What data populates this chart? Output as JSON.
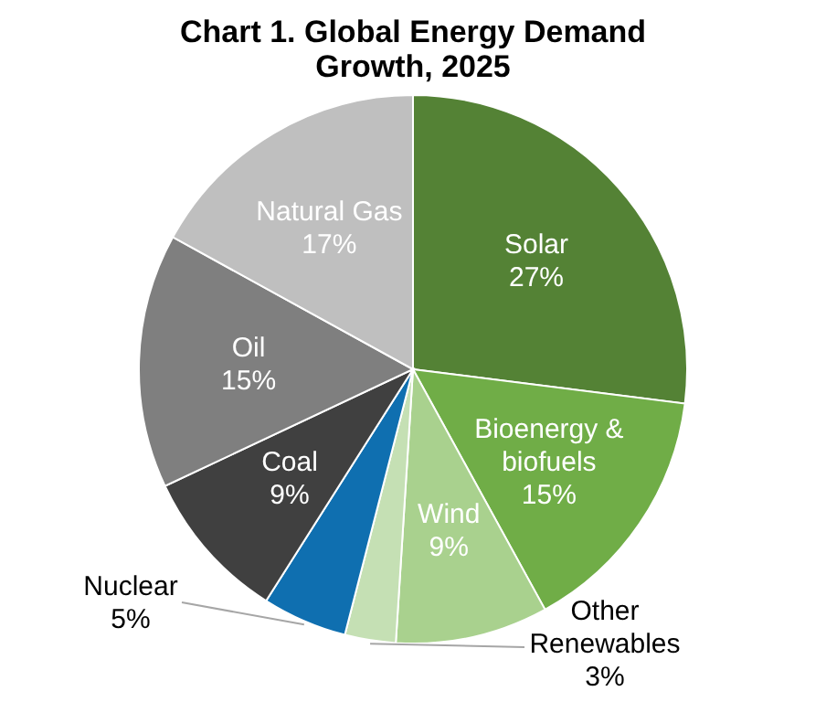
{
  "chart_data": {
    "type": "pie",
    "title": "Chart 1. Global Energy Demand Growth, 2025",
    "categories": [
      "Solar",
      "Bioenergy & biofuels",
      "Wind",
      "Other Renewables",
      "Nuclear",
      "Coal",
      "Oil",
      "Natural Gas"
    ],
    "values": [
      27,
      15,
      9,
      3,
      5,
      9,
      15,
      17
    ],
    "value_labels": [
      "27%",
      "15%",
      "9%",
      "3%",
      "5%",
      "9%",
      "15%",
      "17%"
    ],
    "colors": [
      "#548235",
      "#70ad47",
      "#a9d18e",
      "#c5e0b4",
      "#0f6fb0",
      "#404040",
      "#7f7f7f",
      "#bfbfbf"
    ],
    "legend": false
  }
}
